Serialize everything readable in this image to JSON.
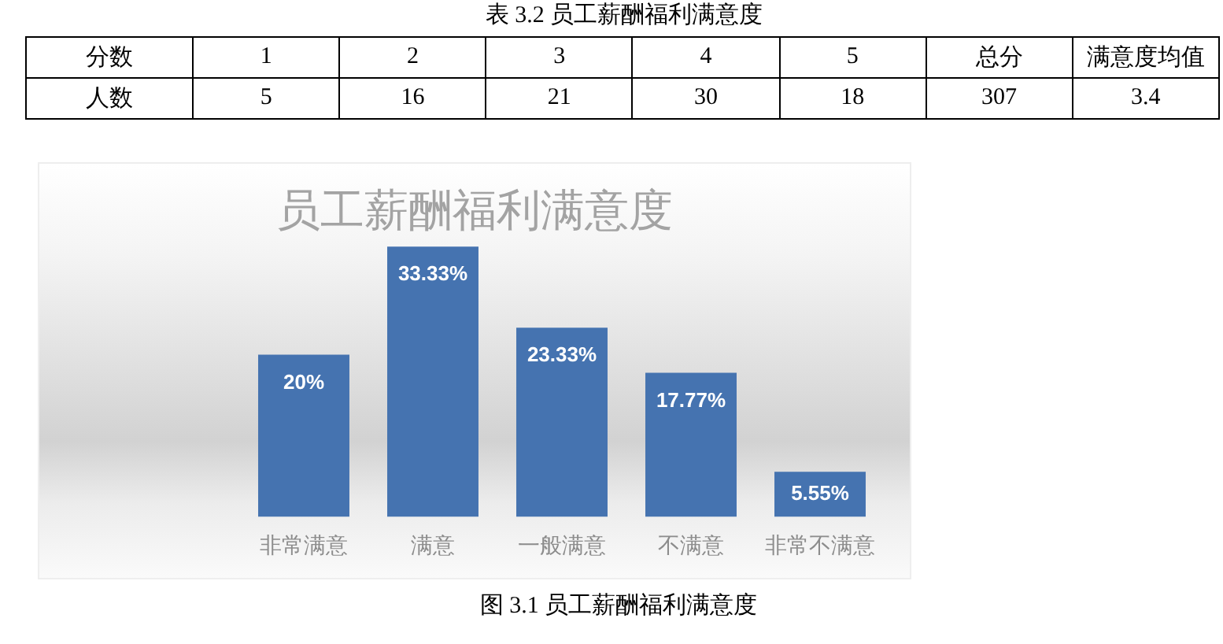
{
  "chart_data": [
    {
      "type": "heatmap",
      "title": "表 3.2 员工薪酬福利满意度",
      "xlabel": "分数",
      "categories": [
        "1",
        "2",
        "3",
        "4",
        "5",
        "总分",
        "满意度均值"
      ],
      "y_categories": [
        "人数"
      ],
      "cells": [
        [
          5,
          16,
          21,
          30,
          18,
          307,
          3.4
        ]
      ],
      "data_labels": true
    },
    {
      "type": "bar",
      "title": "员工薪酬福利满意度",
      "categories": [
        "非常满意",
        "满意",
        "一般满意",
        "不满意",
        "非常不满意"
      ],
      "values": [
        20,
        33.33,
        23.33,
        17.77,
        5.55
      ],
      "color": "#4573b0",
      "value_labels": [
        "20%",
        "33.33%",
        "23.33%",
        "17.77%",
        "5.55%"
      ],
      "grid": false,
      "legend": false,
      "annotations": [
        "图 3.1 员工薪酬福利满意度"
      ]
    }
  ]
}
